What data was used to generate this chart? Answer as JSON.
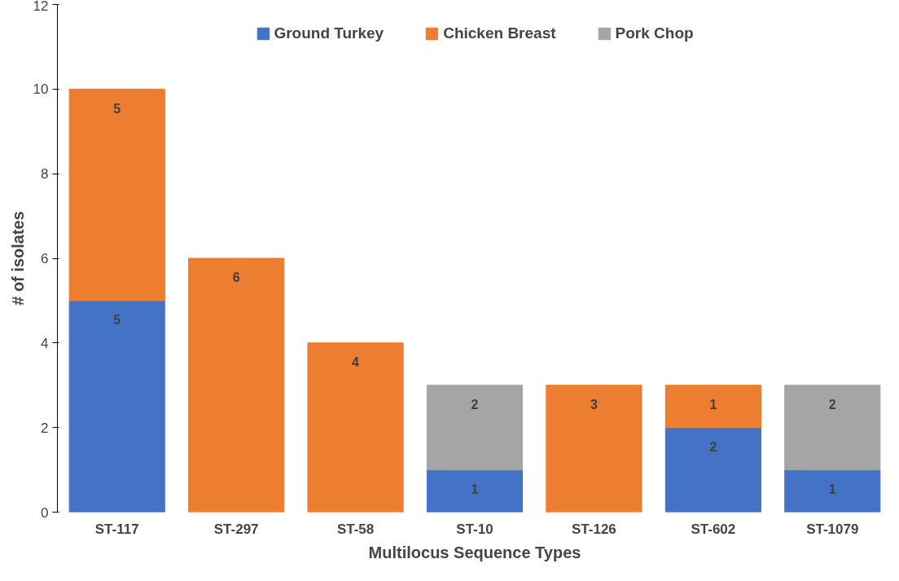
{
  "chart_data": {
    "type": "bar",
    "stacked": true,
    "xlabel": "Multilocus Sequence Types",
    "ylabel": "# of isolates",
    "categories": [
      "ST-117",
      "ST-297",
      "ST-58",
      "ST-10",
      "ST-126",
      "ST-602",
      "ST-1079"
    ],
    "series": [
      {
        "name": "Ground Turkey",
        "color": "#4472c4",
        "values": [
          5,
          null,
          null,
          1,
          null,
          2,
          1
        ]
      },
      {
        "name": "Chicken Breast",
        "color": "#ed7d31",
        "values": [
          5,
          6,
          4,
          null,
          3,
          1,
          null
        ]
      },
      {
        "name": "Pork Chop",
        "color": "#a5a5a5",
        "values": [
          null,
          null,
          null,
          2,
          null,
          null,
          2
        ]
      }
    ],
    "ylim": [
      0,
      12
    ],
    "yticks": [
      0,
      2,
      4,
      6,
      8,
      10,
      12
    ],
    "grid": false,
    "legend": "top",
    "data_labels": true
  }
}
